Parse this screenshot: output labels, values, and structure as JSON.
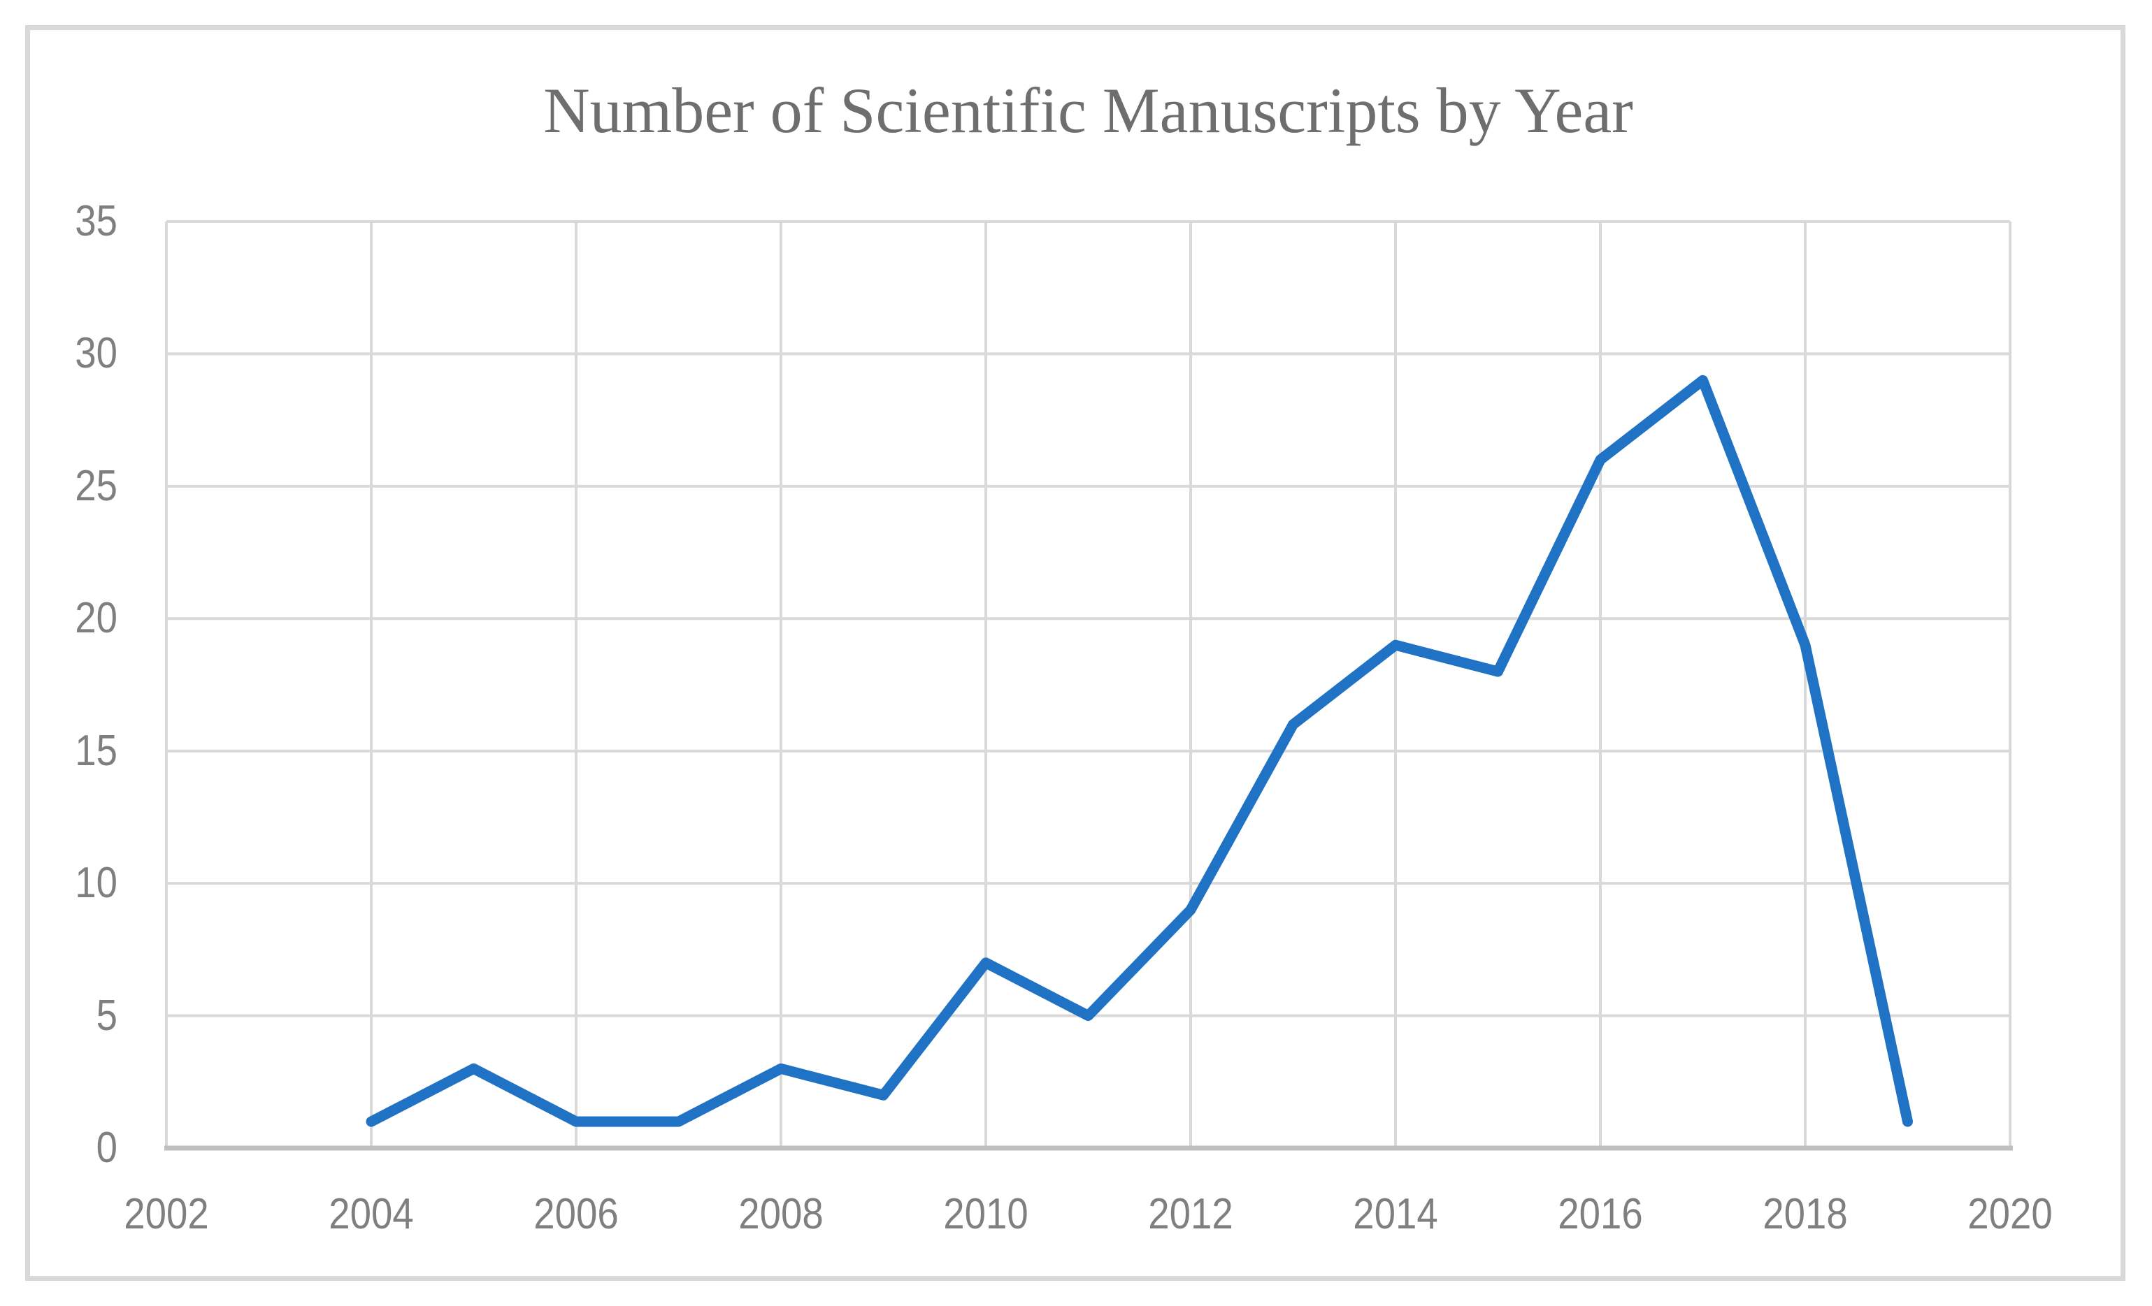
{
  "chart_data": {
    "type": "line",
    "title": "Number of Scientific Manuscripts by Year",
    "xlabel": "",
    "ylabel": "",
    "x": [
      2004,
      2005,
      2006,
      2007,
      2008,
      2009,
      2010,
      2011,
      2012,
      2013,
      2014,
      2015,
      2016,
      2017,
      2018,
      2019
    ],
    "values": [
      1,
      3,
      1,
      1,
      3,
      2,
      7,
      5,
      9,
      16,
      19,
      18,
      26,
      29,
      19,
      1
    ],
    "xlim": [
      2002,
      2020
    ],
    "ylim": [
      0,
      35
    ],
    "x_ticks": [
      2002,
      2004,
      2006,
      2008,
      2010,
      2012,
      2014,
      2016,
      2018,
      2020
    ],
    "y_ticks": [
      0,
      5,
      10,
      15,
      20,
      25,
      30,
      35
    ],
    "grid": true,
    "legend": "none",
    "markers": "none",
    "colors": {
      "line": "#2073C4",
      "gridline": "#D9D9D9",
      "axis_line": "#BFBFBF",
      "title_text": "#6E6E6E",
      "tick_text": "#7F7F7F",
      "frame_border": "#D9D9D9",
      "background": "#FFFFFF"
    }
  }
}
